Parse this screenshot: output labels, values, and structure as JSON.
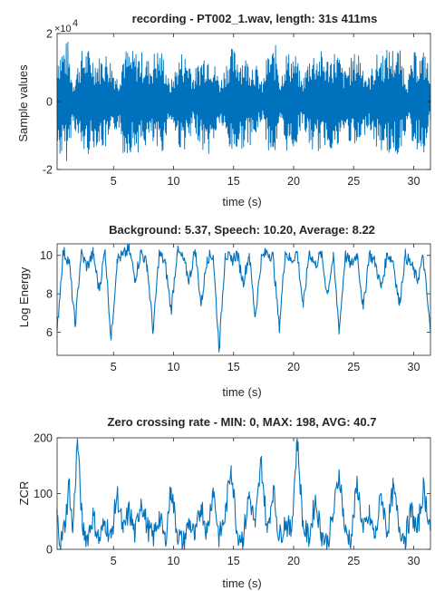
{
  "colors": {
    "series": "#0072BD",
    "axis": "#262626",
    "background": "#ffffff"
  },
  "chart_data": [
    {
      "type": "line",
      "title": "recording - PT002_1.wav, length: 31s 411ms",
      "xlabel": "time (s)",
      "ylabel": "Sample values",
      "y_exponent_label": "×10",
      "y_exponent": "4",
      "xlim": [
        0.3,
        31.4
      ],
      "ylim": [
        -2,
        2
      ],
      "xticks": [
        5,
        10,
        15,
        20,
        25,
        30
      ],
      "yticks": [
        -2,
        0,
        2
      ],
      "series": [
        {
          "style": "waveform",
          "x": [
            0.3,
            1.2,
            1.6,
            2.3,
            2.8,
            3.6,
            4.5,
            5.4,
            5.8,
            6.4,
            7.3,
            8.1,
            8.5,
            9.1,
            9.7,
            10.6,
            11.4,
            11.6,
            12.5,
            13.0,
            13.9,
            14.6,
            14.9,
            15.7,
            16.8,
            17.4,
            17.8,
            18.6,
            18.9,
            19.3,
            20.2,
            20.7,
            21.4,
            22.3,
            22.7,
            23.1,
            23.6,
            24.2,
            24.8,
            25.4,
            26.2,
            26.9,
            27.4,
            28.1,
            28.8,
            29.5,
            30.1,
            30.6,
            31.0,
            31.4
          ],
          "envelope": [
            1.6,
            1.8,
            0.6,
            1.5,
            1.6,
            1.3,
            1.5,
            0.7,
            1.6,
            1.5,
            1.5,
            1.2,
            1.6,
            1.5,
            0.5,
            1.5,
            1.3,
            0.8,
            1.5,
            1.6,
            0.6,
            1.5,
            1.6,
            1.4,
            1.2,
            0.5,
            1.4,
            1.7,
            0.6,
            1.5,
            1.4,
            0.6,
            1.5,
            1.5,
            1.3,
            1.4,
            1.6,
            0.9,
            1.3,
            1.6,
            0.7,
            1.4,
            1.5,
            1.6,
            1.6,
            0.7,
            1.5,
            1.4,
            1.6,
            0.6
          ]
        }
      ]
    },
    {
      "type": "line",
      "title": "Background: 5.37, Speech: 10.20, Average: 8.22",
      "xlabel": "time (s)",
      "ylabel": "Log Energy",
      "xlim": [
        0.3,
        31.4
      ],
      "ylim": [
        4.8,
        10.6
      ],
      "xticks": [
        5,
        10,
        15,
        20,
        25,
        30
      ],
      "yticks": [
        6,
        8,
        10
      ],
      "series": [
        {
          "x": [
            0.3,
            0.8,
            1.3,
            1.8,
            2.3,
            2.8,
            3.3,
            3.8,
            4.3,
            4.8,
            5.3,
            5.8,
            6.3,
            6.8,
            7.3,
            7.8,
            8.3,
            8.8,
            9.3,
            9.8,
            10.3,
            10.8,
            11.3,
            11.8,
            12.3,
            12.8,
            13.3,
            13.8,
            14.3,
            14.8,
            15.3,
            15.8,
            16.3,
            16.8,
            17.3,
            17.8,
            18.3,
            18.8,
            19.3,
            19.8,
            20.3,
            20.8,
            21.3,
            21.8,
            22.3,
            22.8,
            23.3,
            23.8,
            24.3,
            24.8,
            25.3,
            25.8,
            26.3,
            26.8,
            27.3,
            27.8,
            28.3,
            28.8,
            29.3,
            29.8,
            30.3,
            30.8,
            31.4
          ],
          "y": [
            6.1,
            10.2,
            9.7,
            6.3,
            10.1,
            9.4,
            10.1,
            8.2,
            10.3,
            5.6,
            9.8,
            10.0,
            10.3,
            8.8,
            10.2,
            9.5,
            6.0,
            10.1,
            9.6,
            7.1,
            10.2,
            9.8,
            8.7,
            10.3,
            7.4,
            9.9,
            10.0,
            5.1,
            10.1,
            9.7,
            10.1,
            8.6,
            10.1,
            6.8,
            9.8,
            10.2,
            9.9,
            6.2,
            10.2,
            9.7,
            10.2,
            7.3,
            10.2,
            9.5,
            10.1,
            8.0,
            9.9,
            6.1,
            10.0,
            9.5,
            10.1,
            7.2,
            10.1,
            9.6,
            8.3,
            10.1,
            9.7,
            7.4,
            10.0,
            9.5,
            8.7,
            9.9,
            6.0
          ]
        }
      ]
    },
    {
      "type": "line",
      "title": "Zero crossing rate - MIN: 0, MAX: 198, AVG: 40.7",
      "xlabel": "time (s)",
      "ylabel": "ZCR",
      "xlim": [
        0.3,
        31.4
      ],
      "ylim": [
        0,
        200
      ],
      "xticks": [
        5,
        10,
        15,
        20,
        25,
        30
      ],
      "yticks": [
        0,
        100,
        200
      ],
      "series": [
        {
          "x": [
            0.3,
            0.6,
            1.0,
            1.3,
            1.6,
            2.0,
            2.4,
            2.8,
            3.3,
            3.8,
            4.3,
            4.8,
            5.3,
            5.8,
            6.3,
            6.8,
            7.3,
            7.8,
            8.3,
            8.8,
            9.3,
            9.8,
            10.3,
            10.8,
            11.3,
            11.8,
            12.3,
            12.8,
            13.3,
            13.8,
            14.3,
            14.8,
            15.3,
            15.8,
            16.3,
            16.8,
            17.3,
            17.8,
            18.3,
            18.8,
            19.3,
            19.8,
            20.3,
            20.8,
            21.3,
            21.8,
            22.3,
            22.8,
            23.3,
            23.8,
            24.3,
            24.8,
            25.3,
            25.8,
            26.3,
            26.8,
            27.3,
            27.8,
            28.3,
            28.8,
            29.3,
            29.8,
            30.3,
            30.8,
            31.4
          ],
          "y": [
            60,
            10,
            50,
            120,
            30,
            198,
            40,
            20,
            60,
            15,
            50,
            20,
            100,
            30,
            70,
            25,
            90,
            40,
            20,
            60,
            15,
            110,
            30,
            10,
            50,
            20,
            80,
            30,
            110,
            20,
            60,
            150,
            30,
            20,
            100,
            40,
            160,
            30,
            110,
            20,
            50,
            30,
            198,
            40,
            20,
            90,
            30,
            10,
            60,
            140,
            30,
            20,
            120,
            30,
            60,
            20,
            100,
            30,
            110,
            40,
            20,
            70,
            30,
            110,
            40
          ]
        }
      ]
    }
  ]
}
